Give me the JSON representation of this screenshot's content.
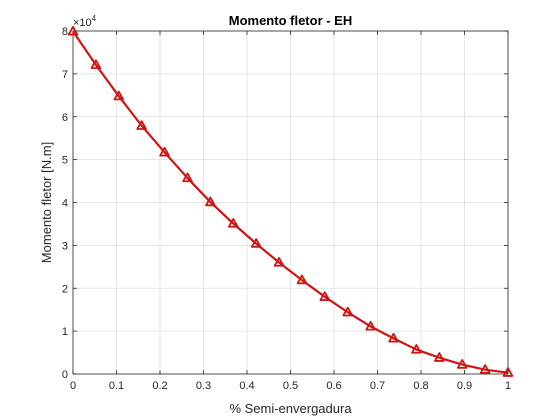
{
  "chart_data": {
    "type": "line",
    "title": "Momento fletor - EH",
    "xlabel": "% Semi-envergadura",
    "ylabel": "Momento fletor [N.m]",
    "xlim": [
      0,
      1
    ],
    "ylim": [
      0,
      80000
    ],
    "xticks": [
      0,
      0.1,
      0.2,
      0.3,
      0.4,
      0.5,
      0.6,
      0.7,
      0.8,
      0.9,
      1
    ],
    "xtick_labels": [
      "0",
      "0.1",
      "0.2",
      "0.3",
      "0.4",
      "0.5",
      "0.6",
      "0.7",
      "0.8",
      "0.9",
      "1"
    ],
    "yticks": [
      0,
      10000,
      20000,
      30000,
      40000,
      50000,
      60000,
      70000,
      80000
    ],
    "ytick_labels": [
      "0",
      "1",
      "2",
      "3",
      "4",
      "5",
      "6",
      "7",
      "8"
    ],
    "y_exponent": {
      "base": "×10",
      "power": "4"
    },
    "grid": true,
    "series": [
      {
        "color": "#d01515",
        "marker": "triangle",
        "x": [
          0,
          0.0526,
          0.1053,
          0.1579,
          0.2105,
          0.2632,
          0.3158,
          0.3684,
          0.4211,
          0.4737,
          0.5263,
          0.5789,
          0.6316,
          0.6842,
          0.7368,
          0.7895,
          0.8421,
          0.8947,
          0.9474,
          1
        ],
        "y": [
          79900,
          72100,
          64800,
          57900,
          51700,
          45700,
          40100,
          35100,
          30400,
          26000,
          21900,
          18000,
          14400,
          11100,
          8300,
          5700,
          3800,
          2200,
          1000,
          300
        ]
      }
    ]
  }
}
